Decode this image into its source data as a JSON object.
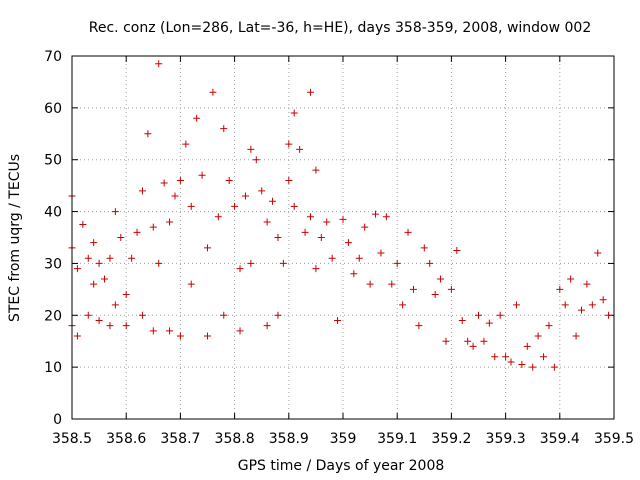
{
  "chart_data": {
    "type": "scatter",
    "title": "Rec. conz (Lon=286, Lat=-36, h=HE), days 358-359, 2008, window 002",
    "xlabel": "GPS time / Days of year 2008",
    "ylabel": "STEC from uqrg / TECUs",
    "xlim": [
      358.5,
      359.5
    ],
    "ylim": [
      0,
      70
    ],
    "xticks": [
      358.5,
      358.6,
      358.7,
      358.8,
      358.9,
      359.0,
      359.1,
      359.2,
      359.3,
      359.4,
      359.5
    ],
    "xtick_labels": [
      "358.5",
      "358.6",
      "358.7",
      "358.8",
      "358.9",
      "359",
      "359.1",
      "359.2",
      "359.3",
      "359.4",
      "359.5"
    ],
    "yticks": [
      0,
      10,
      20,
      30,
      40,
      50,
      60,
      70
    ],
    "ytick_labels": [
      "0",
      "10",
      "20",
      "30",
      "40",
      "50",
      "60",
      "70"
    ],
    "grid": true,
    "marker": "+",
    "color": "#cc0000",
    "series": [
      {
        "x": [
          358.5,
          358.5,
          358.5,
          358.51,
          358.51,
          358.52,
          358.53,
          358.53,
          358.54,
          358.54,
          358.55,
          358.55,
          358.56,
          358.57,
          358.57,
          358.58,
          358.58,
          358.59,
          358.6,
          358.6,
          358.61,
          358.62,
          358.63,
          358.63,
          358.64,
          358.65,
          358.65,
          358.66,
          358.66,
          358.67,
          358.68,
          358.68,
          358.69,
          358.7,
          358.7,
          358.71,
          358.72,
          358.72,
          358.73,
          358.74,
          358.75,
          358.75,
          358.76,
          358.77,
          358.78,
          358.78,
          358.79,
          358.8,
          358.81,
          358.81,
          358.82,
          358.83,
          358.83,
          358.84,
          358.85,
          358.86,
          358.86,
          358.87,
          358.88,
          358.88,
          358.89,
          358.9,
          358.9,
          358.91,
          358.91,
          358.92,
          358.93,
          358.94,
          358.94,
          358.95,
          358.95,
          358.96,
          358.97,
          358.98,
          358.99,
          359.0,
          359.01,
          359.02,
          359.03,
          359.04,
          359.05,
          359.06,
          359.07,
          359.08,
          359.09,
          359.1,
          359.11,
          359.12,
          359.13,
          359.14,
          359.15,
          359.16,
          359.17,
          359.18,
          359.19,
          359.2,
          359.21,
          359.22,
          359.23,
          359.24,
          359.25,
          359.26,
          359.27,
          359.28,
          359.29,
          359.3,
          359.31,
          359.32,
          359.33,
          359.34,
          359.35,
          359.36,
          359.37,
          359.38,
          359.39,
          359.4,
          359.41,
          359.42,
          359.43,
          359.44,
          359.45,
          359.46,
          359.47,
          359.48,
          359.49
        ],
        "y": [
          43,
          33,
          18,
          29,
          16,
          37.5,
          31,
          20,
          34,
          26,
          30,
          19,
          27,
          31,
          18,
          40,
          22,
          35,
          24,
          18,
          31,
          36,
          44,
          20,
          55,
          37,
          17,
          68.5,
          30,
          45.5,
          38,
          17,
          43,
          46,
          16,
          53,
          41,
          26,
          58,
          47,
          33,
          16,
          63,
          39,
          56,
          20,
          46,
          41,
          29,
          17,
          43,
          52,
          30,
          50,
          44,
          38,
          18,
          42,
          35,
          20,
          30,
          53,
          46,
          59,
          41,
          52,
          36,
          63,
          39,
          48,
          29,
          35,
          38,
          31,
          19,
          38.5,
          34,
          28,
          31,
          37,
          26,
          39.5,
          32,
          39,
          26,
          30,
          22,
          36,
          25,
          18,
          33,
          30,
          24,
          27,
          15,
          25,
          32.5,
          19,
          15,
          14,
          20,
          15,
          18.5,
          12,
          20,
          12,
          11,
          22,
          10.5,
          14,
          10,
          16,
          12,
          18,
          10,
          25,
          22,
          27,
          16,
          21,
          26,
          22,
          32,
          23,
          20
        ]
      }
    ]
  }
}
